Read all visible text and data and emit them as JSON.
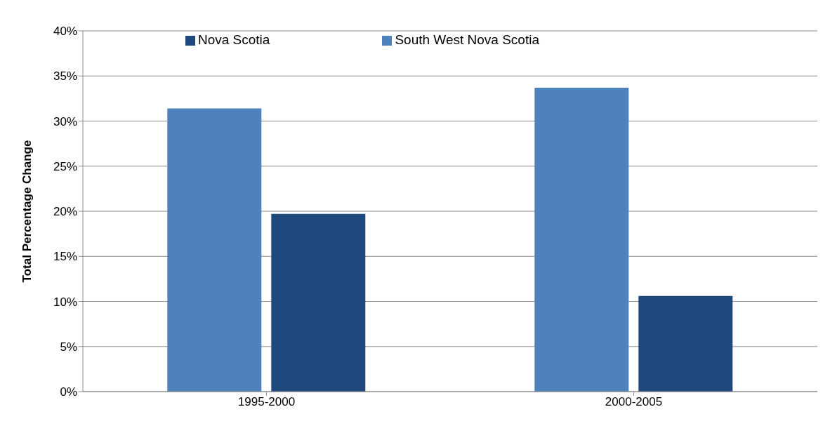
{
  "chart_data": {
    "type": "bar",
    "ylabel": "Total Percentage Change",
    "categories": [
      "1995-2000",
      "2000-2005"
    ],
    "series": [
      {
        "name": "South West Nova Scotia",
        "color": "#4f81bd",
        "values": [
          31.4,
          33.7
        ]
      },
      {
        "name": "Nova Scotia",
        "color": "#1f497d",
        "values": [
          19.7,
          10.6
        ]
      }
    ],
    "ylim": [
      0,
      40
    ],
    "yticks": [
      {
        "value": 0,
        "label": "0%"
      },
      {
        "value": 5,
        "label": "5%"
      },
      {
        "value": 10,
        "label": "10%"
      },
      {
        "value": 15,
        "label": "15%"
      },
      {
        "value": 20,
        "label": "20%"
      },
      {
        "value": 25,
        "label": "25%"
      },
      {
        "value": 30,
        "label": "30%"
      },
      {
        "value": 35,
        "label": "35%"
      },
      {
        "value": 40,
        "label": "40%"
      }
    ],
    "grid": "y",
    "legend": "top"
  }
}
